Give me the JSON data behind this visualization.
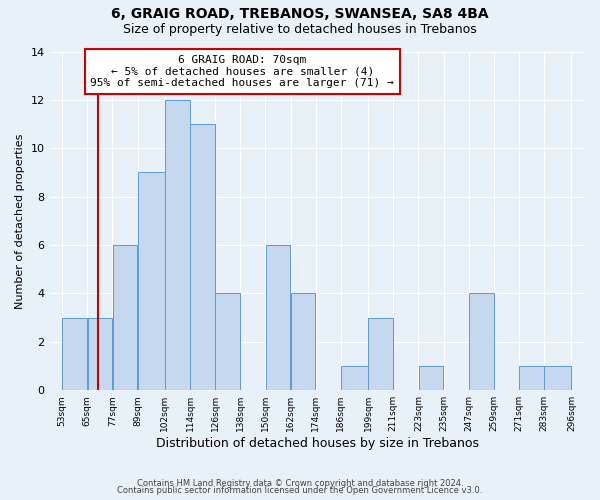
{
  "title": "6, GRAIG ROAD, TREBANOS, SWANSEA, SA8 4BA",
  "subtitle": "Size of property relative to detached houses in Trebanos",
  "xlabel": "Distribution of detached houses by size in Trebanos",
  "ylabel": "Number of detached properties",
  "bin_edges": [
    53,
    65,
    77,
    89,
    102,
    114,
    126,
    138,
    150,
    162,
    174,
    186,
    199,
    211,
    223,
    235,
    247,
    259,
    271,
    283,
    296
  ],
  "counts": [
    3,
    3,
    6,
    9,
    12,
    11,
    4,
    0,
    6,
    4,
    0,
    1,
    3,
    0,
    1,
    0,
    4,
    0,
    1,
    1
  ],
  "bar_color": "#c5d8f0",
  "bar_edge_color": "#5b9bd5",
  "vline_x": 70,
  "vline_color": "#cc0000",
  "annotation_title": "6 GRAIG ROAD: 70sqm",
  "annotation_line1": "← 5% of detached houses are smaller (4)",
  "annotation_line2": "95% of semi-detached houses are larger (71) →",
  "annotation_box_color": "#ffffff",
  "annotation_box_edgecolor": "#cc0000",
  "ylim": [
    0,
    14
  ],
  "yticks": [
    0,
    2,
    4,
    6,
    8,
    10,
    12,
    14
  ],
  "background_color": "#e8f0f8",
  "footer_line1": "Contains HM Land Registry data © Crown copyright and database right 2024.",
  "footer_line2": "Contains public sector information licensed under the Open Government Licence v3.0.",
  "title_fontsize": 10,
  "subtitle_fontsize": 9
}
